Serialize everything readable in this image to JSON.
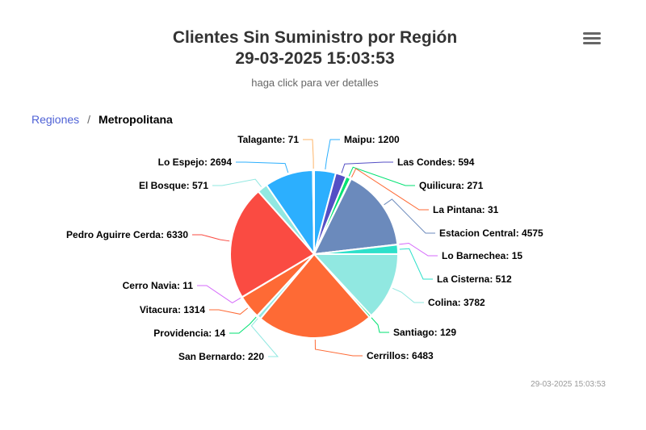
{
  "header": {
    "title_line1": "Clientes Sin Suministro por Región",
    "title_line2": "29-03-2025 15:03:53",
    "subtitle": "haga click para ver detalles",
    "menu_icon": "hamburger-menu-icon"
  },
  "breadcrumb": {
    "parent": "Regiones",
    "separator": "/",
    "current": "Metropolitana"
  },
  "credits": "29-03-2025 15:03:53",
  "chart_data": {
    "type": "pie",
    "title": "Clientes Sin Suministro por Región 29-03-2025 15:03:53",
    "subtitle": "haga click para ver detalles",
    "slices": [
      {
        "name": "Maipu",
        "value": 1200,
        "color": "#2caffe"
      },
      {
        "name": "Las Condes",
        "value": 594,
        "color": "#544fc5"
      },
      {
        "name": "Quilicura",
        "value": 271,
        "color": "#00e272"
      },
      {
        "name": "La Pintana",
        "value": 31,
        "color": "#fe6a35"
      },
      {
        "name": "Estacion Central",
        "value": 4575,
        "color": "#6b8abc"
      },
      {
        "name": "Lo Barnechea",
        "value": 15,
        "color": "#d568fb"
      },
      {
        "name": "La Cisterna",
        "value": 512,
        "color": "#2ee0ca"
      },
      {
        "name": "Colina",
        "value": 3782,
        "color": "#91e8e1"
      },
      {
        "name": "Santiago",
        "value": 129,
        "color": "#00e272"
      },
      {
        "name": "Cerrillos",
        "value": 6483,
        "color": "#fe6a35"
      },
      {
        "name": "San Bernardo",
        "value": 220,
        "color": "#91e8e1"
      },
      {
        "name": "Providencia",
        "value": 14,
        "color": "#00e272"
      },
      {
        "name": "Vitacura",
        "value": 1314,
        "color": "#fe6a35"
      },
      {
        "name": "Cerro Navia",
        "value": 11,
        "color": "#d568fb"
      },
      {
        "name": "Pedro Aguirre Cerda",
        "value": 6330,
        "color": "#fa4b42"
      },
      {
        "name": "El Bosque",
        "value": 571,
        "color": "#91e8e1"
      },
      {
        "name": "Lo Espejo",
        "value": 2694,
        "color": "#2caffe"
      },
      {
        "name": "Talagante",
        "value": 71,
        "color": "#feb56a"
      }
    ]
  }
}
